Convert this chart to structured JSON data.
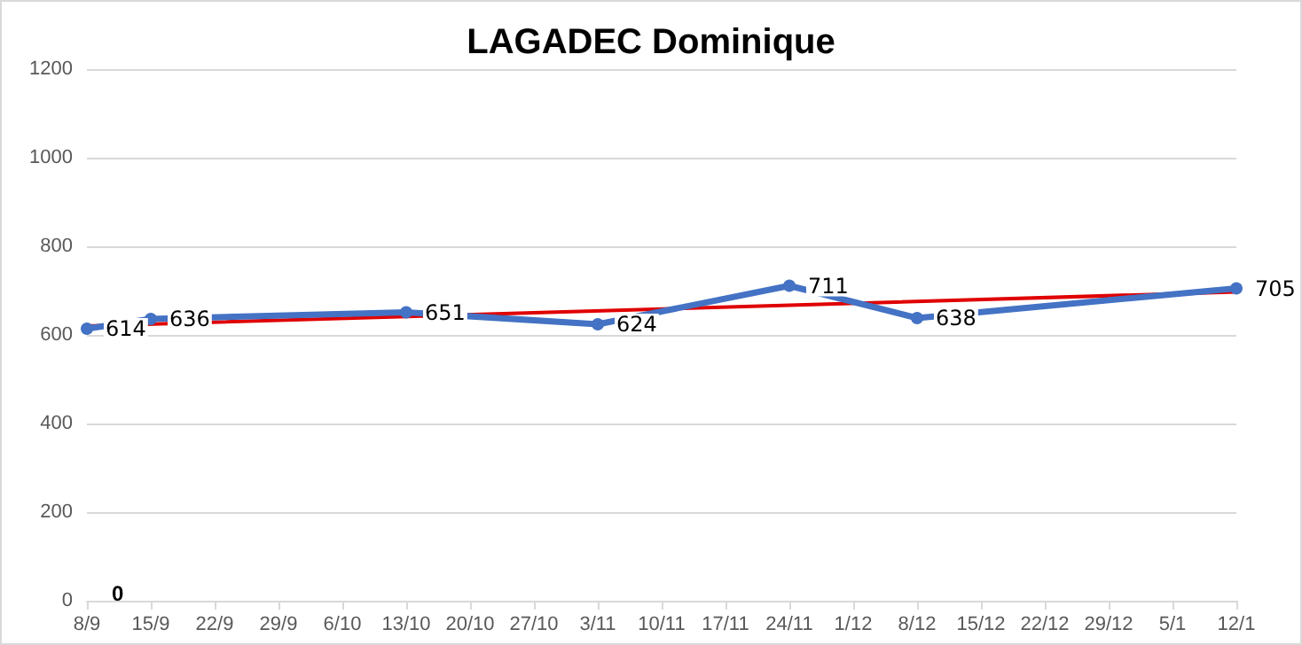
{
  "chart_data": {
    "type": "line",
    "title": "LAGADEC Dominique",
    "categories": [
      "8/9",
      "15/9",
      "22/9",
      "29/9",
      "6/10",
      "13/10",
      "20/10",
      "27/10",
      "3/11",
      "10/11",
      "17/11",
      "24/11",
      "1/12",
      "8/12",
      "15/12",
      "22/12",
      "29/12",
      "5/1",
      "12/1"
    ],
    "series": [
      {
        "color": "#4472c4",
        "marker": "circle",
        "values": [
          614,
          636,
          null,
          null,
          null,
          651,
          null,
          null,
          624,
          null,
          null,
          711,
          null,
          638,
          null,
          null,
          null,
          null,
          705
        ],
        "value_labels": [
          "614",
          "636",
          null,
          null,
          null,
          "651",
          null,
          null,
          "624",
          null,
          null,
          "711",
          null,
          "638",
          null,
          null,
          null,
          null,
          "705"
        ]
      },
      {
        "type": "line",
        "color": "#e00000",
        "marker": "none",
        "x": [
          "8/9",
          "12/1"
        ],
        "values": [
          620,
          697
        ]
      }
    ],
    "ylim": [
      0,
      1200
    ],
    "yticks": [
      0,
      200,
      400,
      600,
      800,
      {
        "value": 1000,
        "label": "1000"
      },
      {
        "value": 1200,
        "label": "1200"
      }
    ],
    "grid": "y",
    "annotations": [
      "0"
    ]
  }
}
